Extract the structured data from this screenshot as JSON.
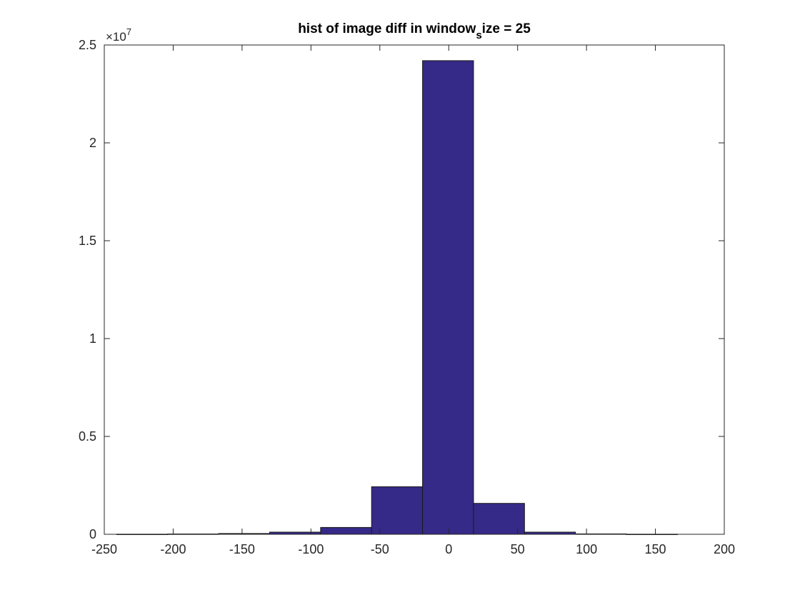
{
  "chart_data": {
    "type": "bar",
    "title": "hist of image diff in window",
    "title_subscript": "s",
    "title_after": "ize = 25",
    "xlabel": "",
    "ylabel": "",
    "xlim": [
      -250,
      200
    ],
    "ylim": [
      0,
      25000000
    ],
    "x_ticks": [
      -250,
      -200,
      -150,
      -100,
      -50,
      0,
      50,
      100,
      150,
      200
    ],
    "x_tick_labels": [
      "-250",
      "-200",
      "-150",
      "-100",
      "-50",
      "0",
      "50",
      "100",
      "150",
      "200"
    ],
    "y_ticks": [
      0,
      5000000,
      10000000,
      15000000,
      20000000,
      25000000
    ],
    "y_tick_labels": [
      "0",
      "0.5",
      "1",
      "1.5",
      "2",
      "2.5"
    ],
    "y_exponent_base": "×10",
    "y_exponent_power": "7",
    "bins": {
      "edges": [
        -241,
        -204,
        -167,
        -130,
        -93,
        -56,
        -19,
        18,
        55,
        92,
        129,
        166
      ],
      "counts": [
        5000,
        15000,
        40000,
        110000,
        350000,
        2430000,
        24200000,
        1580000,
        110000,
        20000,
        5000
      ]
    },
    "grid": false,
    "legend": "none",
    "colors": {
      "bar_fill": "#352a87",
      "bar_edge": "#1a1a1a",
      "axis": "#262626"
    }
  }
}
